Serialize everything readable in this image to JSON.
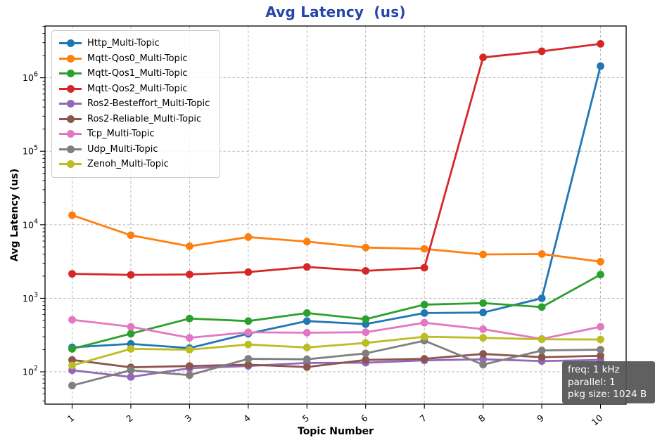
{
  "title": {
    "text": "Avg Latency  (us)",
    "color": "#2546a8"
  },
  "axes": {
    "x_label": "Topic Number",
    "y_label": "Avg Latency (us)",
    "x_ticks": [
      "1",
      "2",
      "3",
      "4",
      "5",
      "6",
      "7",
      "8",
      "9",
      "10"
    ],
    "y_tick_base": "10",
    "y_tick_exponents": [
      "2",
      "3",
      "4",
      "5",
      "6"
    ]
  },
  "info_box": {
    "lines": [
      "freq: 1 kHz",
      "parallel: 1",
      "pkg size: 1024 B"
    ]
  },
  "chart_data": {
    "type": "line",
    "title": "Avg Latency  (us)",
    "xlabel": "Topic Number",
    "ylabel": "Avg Latency (us)",
    "x": [
      1,
      2,
      3,
      4,
      5,
      6,
      7,
      8,
      9,
      10
    ],
    "y_scale": "log",
    "ylim": [
      36,
      5000000
    ],
    "grid": true,
    "legend_position": "upper left",
    "annotation": {
      "text": "freq: 1 kHz\nparallel: 1\npkg size: 1024 B",
      "position": "lower right"
    },
    "series": [
      {
        "name": "Http_Multi-Topic",
        "color": "#1f77b4",
        "values": [
          215,
          240,
          210,
          330,
          490,
          445,
          630,
          640,
          1000,
          1440000
        ]
      },
      {
        "name": "Mqtt-Qos0_Multi-Topic",
        "color": "#ff7f0e",
        "values": [
          13500,
          7200,
          5100,
          6800,
          5900,
          4900,
          4700,
          3950,
          4000,
          3150
        ]
      },
      {
        "name": "Mqtt-Qos1_Multi-Topic",
        "color": "#2ca02c",
        "values": [
          205,
          330,
          530,
          490,
          630,
          520,
          820,
          860,
          760,
          2100
        ]
      },
      {
        "name": "Mqtt-Qos2_Multi-Topic",
        "color": "#d62728",
        "values": [
          2150,
          2080,
          2110,
          2270,
          2670,
          2360,
          2600,
          1890000,
          2290000,
          2890000
        ]
      },
      {
        "name": "Ros2-Besteffort_Multi-Topic",
        "color": "#9467bd",
        "values": [
          105,
          85,
          112,
          120,
          132,
          133,
          143,
          148,
          140,
          145
        ]
      },
      {
        "name": "Ros2-Reliable_Multi-Topic",
        "color": "#8c564b",
        "values": [
          145,
          115,
          120,
          125,
          116,
          145,
          150,
          175,
          158,
          165
        ]
      },
      {
        "name": "Tcp_Multi-Topic",
        "color": "#e377c2",
        "values": [
          510,
          410,
          290,
          345,
          340,
          345,
          465,
          380,
          280,
          410
        ]
      },
      {
        "name": "Udp_Multi-Topic",
        "color": "#7f7f7f",
        "values": [
          65,
          105,
          90,
          150,
          148,
          178,
          265,
          125,
          195,
          200
        ]
      },
      {
        "name": "Zenoh_Multi-Topic",
        "color": "#bcbd22",
        "values": [
          122,
          205,
          200,
          235,
          214,
          247,
          300,
          290,
          277,
          275
        ]
      }
    ]
  }
}
